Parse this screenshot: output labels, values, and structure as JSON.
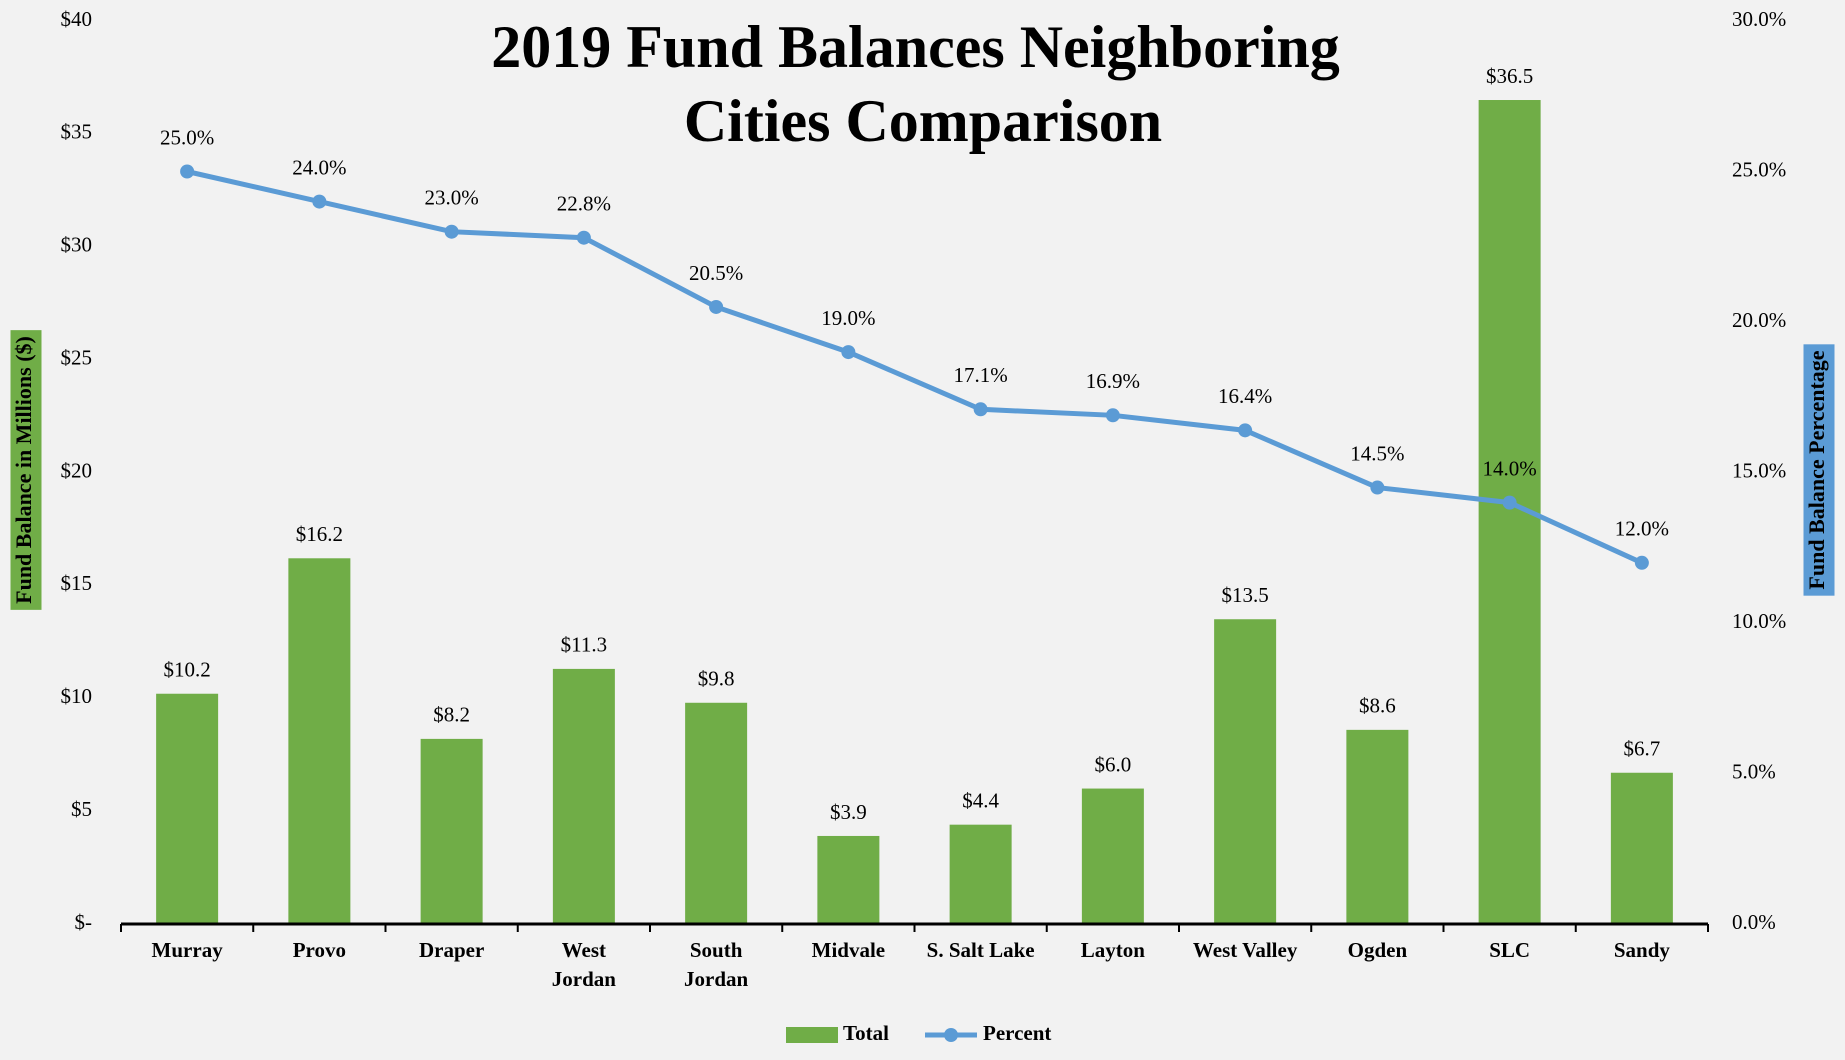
{
  "chart_data": {
    "type": "bar",
    "title": "2019 Fund Balances Neighboring Cities Comparison",
    "categories": [
      "Murray",
      "Provo",
      "Draper",
      "West\nJordan",
      "South\nJordan",
      "Midvale",
      "S. Salt Lake",
      "Layton",
      "West Valley",
      "Ogden",
      "SLC",
      "Sandy"
    ],
    "series": [
      {
        "name": "Total",
        "type": "bar",
        "color": "#70ad47",
        "values": [
          10.2,
          16.2,
          8.2,
          11.3,
          9.8,
          3.9,
          4.4,
          6.0,
          13.5,
          8.6,
          36.5,
          6.7
        ],
        "value_labels": [
          "$10.2",
          "$16.2",
          "$8.2",
          "$11.3",
          "$9.8",
          "$3.9",
          "$4.4",
          "$6.0",
          "$13.5",
          "$8.6",
          "$36.5",
          "$6.7"
        ]
      },
      {
        "name": "Percent",
        "type": "line",
        "axis": "y2",
        "color": "#5b9bd5",
        "values": [
          25.0,
          24.0,
          23.0,
          22.8,
          20.5,
          19.0,
          17.1,
          16.9,
          16.4,
          14.5,
          14.0,
          12.0
        ],
        "value_labels": [
          "25.0%",
          "24.0%",
          "23.0%",
          "22.8%",
          "20.5%",
          "19.0%",
          "17.1%",
          "16.9%",
          "16.4%",
          "14.5%",
          "14.0%",
          "12.0%"
        ]
      }
    ],
    "y_label": "Fund Balance in Millions ($)",
    "y2_label": "Fund Balance Percentage",
    "ylim": [
      0,
      40
    ],
    "yticks": [
      {
        "value": 0,
        "label": "$-"
      },
      {
        "value": 5,
        "label": "$5"
      },
      {
        "value": 10,
        "label": "$10"
      },
      {
        "value": 15,
        "label": "$15"
      },
      {
        "value": 20,
        "label": "$20"
      },
      {
        "value": 25,
        "label": "$25"
      },
      {
        "value": 30,
        "label": "$30"
      },
      {
        "value": 35,
        "label": "$35"
      },
      {
        "value": 40,
        "label": "$40"
      }
    ],
    "y2lim": [
      0,
      30
    ],
    "y2ticks": [
      {
        "value": 0,
        "label": "0.0%"
      },
      {
        "value": 5,
        "label": "5.0%"
      },
      {
        "value": 10,
        "label": "10.0%"
      },
      {
        "value": 15,
        "label": "15.0%"
      },
      {
        "value": 20,
        "label": "20.0%"
      },
      {
        "value": 25,
        "label": "25.0%"
      },
      {
        "value": 30,
        "label": "30.0%"
      }
    ],
    "grid": false,
    "legend": "bottom"
  }
}
